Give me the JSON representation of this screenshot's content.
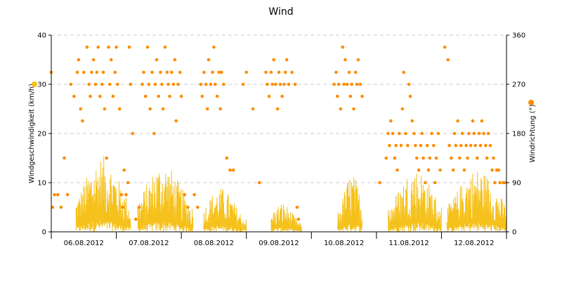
{
  "chart_data": {
    "type": "line",
    "title": "Wind",
    "x_ticks": [
      "06.08.2012",
      "07.08.2012",
      "08.08.2012",
      "09.08.2012",
      "10.08.2012",
      "11.08.2012",
      "12.08.2012"
    ],
    "x_range_days": [
      0,
      7
    ],
    "y_left": {
      "label": "Windgeschwindigkeit (km/h)",
      "range": [
        0,
        40
      ],
      "ticks": [
        0,
        10,
        20,
        30,
        40
      ]
    },
    "y_right": {
      "label": "Windrichtung (°)",
      "range": [
        0,
        360
      ],
      "ticks": [
        0,
        90,
        180,
        270,
        360
      ]
    },
    "grid": true,
    "colors": {
      "speed": "#f5c11c",
      "direction": "#ff8c00",
      "grid": "#cccccc",
      "axis": "#000000"
    },
    "series": [
      {
        "name": "Windgeschwindigkeit",
        "axis": "left",
        "style": "line",
        "day_profiles": [
          {
            "start": 0.38,
            "end": 1.22,
            "peak_center": 0.78,
            "peak": 15.5
          },
          {
            "start": 1.33,
            "end": 2.18,
            "peak_center": 1.72,
            "peak": 14.0
          },
          {
            "start": 2.34,
            "end": 3.0,
            "peak_center": 2.6,
            "peak": 9.0
          },
          {
            "start": 3.38,
            "end": 3.85,
            "peak_center": 3.55,
            "peak": 6.0
          },
          {
            "start": 4.4,
            "end": 4.78,
            "peak_center": 4.62,
            "peak": 12.0
          },
          {
            "start": 5.18,
            "end": 6.0,
            "peak_center": 5.6,
            "peak": 13.0
          },
          {
            "start": 6.08,
            "end": 7.0,
            "peak_center": 6.55,
            "peak": 13.0
          }
        ]
      },
      {
        "name": "Windrichtung",
        "axis": "right",
        "style": "points",
        "points": [
          [
            0.0,
            292
          ],
          [
            0.02,
            45
          ],
          [
            0.05,
            68
          ],
          [
            0.1,
            68
          ],
          [
            0.15,
            45
          ],
          [
            0.2,
            135
          ],
          [
            0.25,
            68
          ],
          [
            0.3,
            270
          ],
          [
            0.35,
            248
          ],
          [
            0.4,
            292
          ],
          [
            0.42,
            315
          ],
          [
            0.45,
            225
          ],
          [
            0.48,
            203
          ],
          [
            0.5,
            292
          ],
          [
            0.55,
            338
          ],
          [
            0.58,
            270
          ],
          [
            0.6,
            248
          ],
          [
            0.62,
            292
          ],
          [
            0.65,
            315
          ],
          [
            0.68,
            270
          ],
          [
            0.7,
            292
          ],
          [
            0.72,
            338
          ],
          [
            0.75,
            248
          ],
          [
            0.78,
            270
          ],
          [
            0.8,
            292
          ],
          [
            0.82,
            225
          ],
          [
            0.85,
            135
          ],
          [
            0.88,
            338
          ],
          [
            0.9,
            270
          ],
          [
            0.92,
            315
          ],
          [
            0.95,
            248
          ],
          [
            0.98,
            292
          ],
          [
            1.0,
            338
          ],
          [
            1.02,
            270
          ],
          [
            1.05,
            225
          ],
          [
            1.08,
            68
          ],
          [
            1.1,
            45
          ],
          [
            1.12,
            113
          ],
          [
            1.15,
            68
          ],
          [
            1.18,
            90
          ],
          [
            1.2,
            338
          ],
          [
            1.22,
            270
          ],
          [
            1.25,
            180
          ],
          [
            1.3,
            23
          ],
          [
            1.35,
            45
          ],
          [
            1.4,
            270
          ],
          [
            1.42,
            292
          ],
          [
            1.45,
            248
          ],
          [
            1.48,
            338
          ],
          [
            1.5,
            270
          ],
          [
            1.52,
            225
          ],
          [
            1.55,
            292
          ],
          [
            1.58,
            180
          ],
          [
            1.6,
            270
          ],
          [
            1.62,
            315
          ],
          [
            1.65,
            248
          ],
          [
            1.68,
            292
          ],
          [
            1.7,
            270
          ],
          [
            1.72,
            225
          ],
          [
            1.75,
            338
          ],
          [
            1.78,
            292
          ],
          [
            1.8,
            270
          ],
          [
            1.82,
            248
          ],
          [
            1.85,
            292
          ],
          [
            1.88,
            270
          ],
          [
            1.9,
            315
          ],
          [
            1.92,
            203
          ],
          [
            1.95,
            270
          ],
          [
            1.98,
            292
          ],
          [
            2.0,
            248
          ],
          [
            2.05,
            68
          ],
          [
            2.1,
            45
          ],
          [
            2.2,
            68
          ],
          [
            2.25,
            45
          ],
          [
            2.3,
            270
          ],
          [
            2.32,
            248
          ],
          [
            2.35,
            292
          ],
          [
            2.38,
            270
          ],
          [
            2.4,
            225
          ],
          [
            2.42,
            315
          ],
          [
            2.45,
            270
          ],
          [
            2.48,
            292
          ],
          [
            2.5,
            338
          ],
          [
            2.52,
            270
          ],
          [
            2.55,
            248
          ],
          [
            2.58,
            292
          ],
          [
            2.6,
            225
          ],
          [
            2.62,
            292
          ],
          [
            2.65,
            270
          ],
          [
            2.7,
            135
          ],
          [
            2.75,
            113
          ],
          [
            2.8,
            113
          ],
          [
            2.95,
            270
          ],
          [
            3.0,
            292
          ],
          [
            3.1,
            225
          ],
          [
            3.2,
            90
          ],
          [
            3.3,
            292
          ],
          [
            3.32,
            270
          ],
          [
            3.35,
            248
          ],
          [
            3.38,
            292
          ],
          [
            3.4,
            270
          ],
          [
            3.42,
            315
          ],
          [
            3.45,
            270
          ],
          [
            3.48,
            225
          ],
          [
            3.5,
            292
          ],
          [
            3.52,
            270
          ],
          [
            3.55,
            248
          ],
          [
            3.58,
            270
          ],
          [
            3.6,
            292
          ],
          [
            3.62,
            315
          ],
          [
            3.65,
            270
          ],
          [
            3.7,
            292
          ],
          [
            3.75,
            270
          ],
          [
            3.78,
            45
          ],
          [
            3.8,
            23
          ],
          [
            4.35,
            270
          ],
          [
            4.38,
            292
          ],
          [
            4.4,
            248
          ],
          [
            4.42,
            270
          ],
          [
            4.45,
            225
          ],
          [
            4.48,
            338
          ],
          [
            4.5,
            270
          ],
          [
            4.52,
            315
          ],
          [
            4.55,
            270
          ],
          [
            4.58,
            292
          ],
          [
            4.6,
            248
          ],
          [
            4.62,
            270
          ],
          [
            4.65,
            225
          ],
          [
            4.68,
            292
          ],
          [
            4.7,
            270
          ],
          [
            4.72,
            315
          ],
          [
            4.75,
            270
          ],
          [
            4.78,
            248
          ],
          [
            5.05,
            90
          ],
          [
            5.15,
            135
          ],
          [
            5.18,
            180
          ],
          [
            5.2,
            158
          ],
          [
            5.22,
            203
          ],
          [
            5.25,
            180
          ],
          [
            5.28,
            135
          ],
          [
            5.3,
            158
          ],
          [
            5.32,
            113
          ],
          [
            5.35,
            180
          ],
          [
            5.38,
            158
          ],
          [
            5.4,
            225
          ],
          [
            5.42,
            292
          ],
          [
            5.45,
            180
          ],
          [
            5.48,
            158
          ],
          [
            5.5,
            270
          ],
          [
            5.52,
            248
          ],
          [
            5.55,
            203
          ],
          [
            5.58,
            180
          ],
          [
            5.6,
            158
          ],
          [
            5.62,
            135
          ],
          [
            5.65,
            113
          ],
          [
            5.68,
            158
          ],
          [
            5.7,
            180
          ],
          [
            5.72,
            135
          ],
          [
            5.75,
            90
          ],
          [
            5.78,
            158
          ],
          [
            5.8,
            113
          ],
          [
            5.82,
            135
          ],
          [
            5.85,
            180
          ],
          [
            5.88,
            158
          ],
          [
            5.9,
            90
          ],
          [
            5.92,
            135
          ],
          [
            5.95,
            180
          ],
          [
            5.98,
            113
          ],
          [
            6.05,
            338
          ],
          [
            6.1,
            315
          ],
          [
            6.12,
            158
          ],
          [
            6.15,
            135
          ],
          [
            6.18,
            113
          ],
          [
            6.2,
            180
          ],
          [
            6.22,
            158
          ],
          [
            6.25,
            203
          ],
          [
            6.28,
            135
          ],
          [
            6.3,
            158
          ],
          [
            6.32,
            180
          ],
          [
            6.35,
            113
          ],
          [
            6.38,
            158
          ],
          [
            6.4,
            135
          ],
          [
            6.42,
            180
          ],
          [
            6.45,
            158
          ],
          [
            6.48,
            203
          ],
          [
            6.5,
            180
          ],
          [
            6.52,
            158
          ],
          [
            6.55,
            135
          ],
          [
            6.58,
            180
          ],
          [
            6.6,
            158
          ],
          [
            6.62,
            203
          ],
          [
            6.65,
            180
          ],
          [
            6.68,
            158
          ],
          [
            6.7,
            135
          ],
          [
            6.72,
            180
          ],
          [
            6.75,
            158
          ],
          [
            6.78,
            113
          ],
          [
            6.8,
            135
          ],
          [
            6.82,
            90
          ],
          [
            6.85,
            113
          ],
          [
            6.88,
            113
          ],
          [
            6.9,
            90
          ],
          [
            6.95,
            90
          ],
          [
            6.98,
            90
          ]
        ]
      }
    ]
  }
}
